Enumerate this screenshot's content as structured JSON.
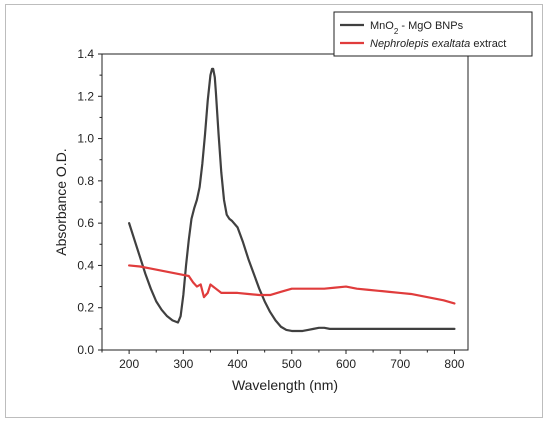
{
  "chart_data": {
    "type": "line",
    "title": "",
    "xlabel": "Wavelength (nm)",
    "ylabel": "Absorbance O.D.",
    "xlim": [
      150,
      825
    ],
    "ylim": [
      0.0,
      1.4
    ],
    "x_ticks": [
      200,
      300,
      400,
      500,
      600,
      700,
      800
    ],
    "y_ticks": [
      0.0,
      0.2,
      0.4,
      0.6,
      0.8,
      1.0,
      1.2,
      1.4
    ],
    "grid": false,
    "legend_position": "top-right",
    "series": [
      {
        "name_parts": [
          {
            "text": "MnO",
            "style": "normal"
          },
          {
            "text": "2",
            "style": "subscript"
          },
          {
            "text": " - MgO BNPs",
            "style": "normal"
          }
        ],
        "color": "#404040",
        "x": [
          200,
          210,
          220,
          230,
          240,
          250,
          260,
          270,
          280,
          290,
          295,
          300,
          305,
          310,
          315,
          320,
          325,
          330,
          335,
          340,
          345,
          350,
          353,
          355,
          358,
          360,
          365,
          370,
          375,
          380,
          385,
          390,
          400,
          410,
          420,
          430,
          440,
          450,
          460,
          470,
          480,
          490,
          500,
          510,
          520,
          530,
          540,
          550,
          560,
          570,
          580,
          600,
          650,
          700,
          750,
          800
        ],
        "values": [
          0.6,
          0.52,
          0.44,
          0.36,
          0.29,
          0.23,
          0.19,
          0.16,
          0.14,
          0.13,
          0.16,
          0.26,
          0.4,
          0.52,
          0.62,
          0.67,
          0.71,
          0.77,
          0.88,
          1.02,
          1.18,
          1.3,
          1.33,
          1.33,
          1.29,
          1.22,
          1.02,
          0.84,
          0.71,
          0.64,
          0.62,
          0.61,
          0.58,
          0.51,
          0.43,
          0.36,
          0.29,
          0.23,
          0.18,
          0.14,
          0.11,
          0.095,
          0.09,
          0.09,
          0.09,
          0.095,
          0.1,
          0.105,
          0.105,
          0.1,
          0.1,
          0.1,
          0.1,
          0.1,
          0.1,
          0.1
        ]
      },
      {
        "name_parts": [
          {
            "text": "Nephrolepis exaltata",
            "style": "italic"
          },
          {
            "text": " extract",
            "style": "normal"
          }
        ],
        "color": "#e03c3c",
        "x": [
          200,
          220,
          240,
          260,
          280,
          300,
          310,
          318,
          325,
          332,
          338,
          345,
          350,
          355,
          360,
          370,
          380,
          400,
          420,
          440,
          460,
          480,
          500,
          520,
          540,
          560,
          580,
          600,
          620,
          640,
          660,
          680,
          700,
          720,
          740,
          760,
          780,
          800
        ],
        "values": [
          0.4,
          0.395,
          0.385,
          0.375,
          0.365,
          0.355,
          0.35,
          0.32,
          0.3,
          0.31,
          0.25,
          0.27,
          0.31,
          0.3,
          0.29,
          0.27,
          0.27,
          0.27,
          0.265,
          0.26,
          0.26,
          0.275,
          0.29,
          0.29,
          0.29,
          0.29,
          0.295,
          0.3,
          0.29,
          0.285,
          0.28,
          0.275,
          0.27,
          0.265,
          0.255,
          0.245,
          0.235,
          0.22
        ]
      }
    ]
  }
}
